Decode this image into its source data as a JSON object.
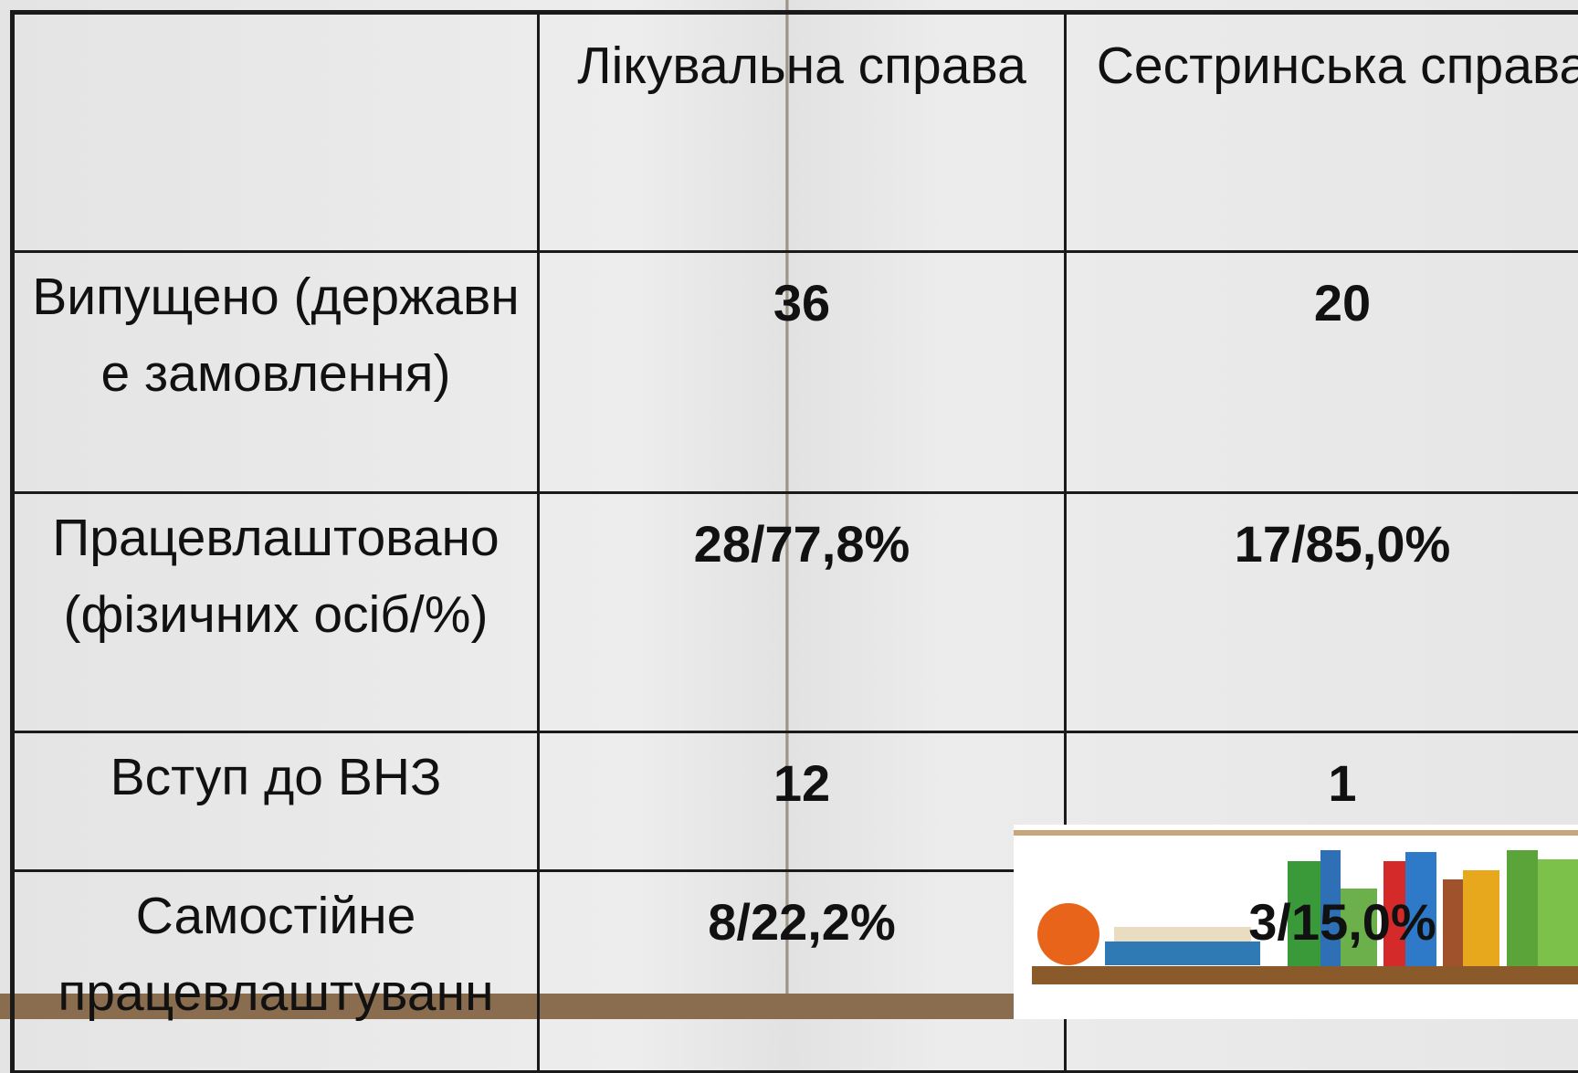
{
  "table": {
    "header": [
      "Лікувальна справа",
      "Сестринська справа"
    ],
    "rows": [
      [
        "Випущено (державне замовлення)",
        "36",
        "20"
      ],
      [
        "Працевлаштовано (фізичних осіб/%)",
        "28/77,8%",
        "17/85,0%"
      ],
      [
        "Вступ до ВНЗ",
        "12",
        "1"
      ],
      [
        "Самостійне працевлаштуванн",
        "8/22,2%",
        "3/15,0%"
      ]
    ]
  }
}
